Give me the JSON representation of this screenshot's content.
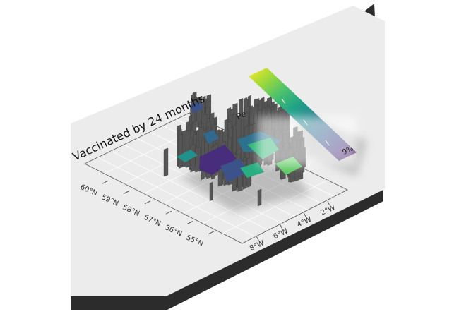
{
  "title": "Vaccinated by 24 months",
  "legend": {
    "title_visible": "Pe",
    "label_visible": "%6",
    "gradient_colors": [
      "#fde725",
      "#a0da39",
      "#4ac16d",
      "#1fa187",
      "#277f8e",
      "#365c8d",
      "#46327e",
      "#440154"
    ]
  },
  "axes": {
    "lat_ticks": [
      "60°N",
      "59°N",
      "58°N",
      "57°N",
      "56°N",
      "55°N"
    ],
    "lon_ticks": [
      "8°W",
      "6°W",
      "4°W",
      "2°W"
    ]
  },
  "colors": {
    "plane": "#ececec",
    "plane_edge": "#3a3a3a",
    "bars": "#505050",
    "grid": "#ffffff",
    "panel_border": "#555555"
  }
}
